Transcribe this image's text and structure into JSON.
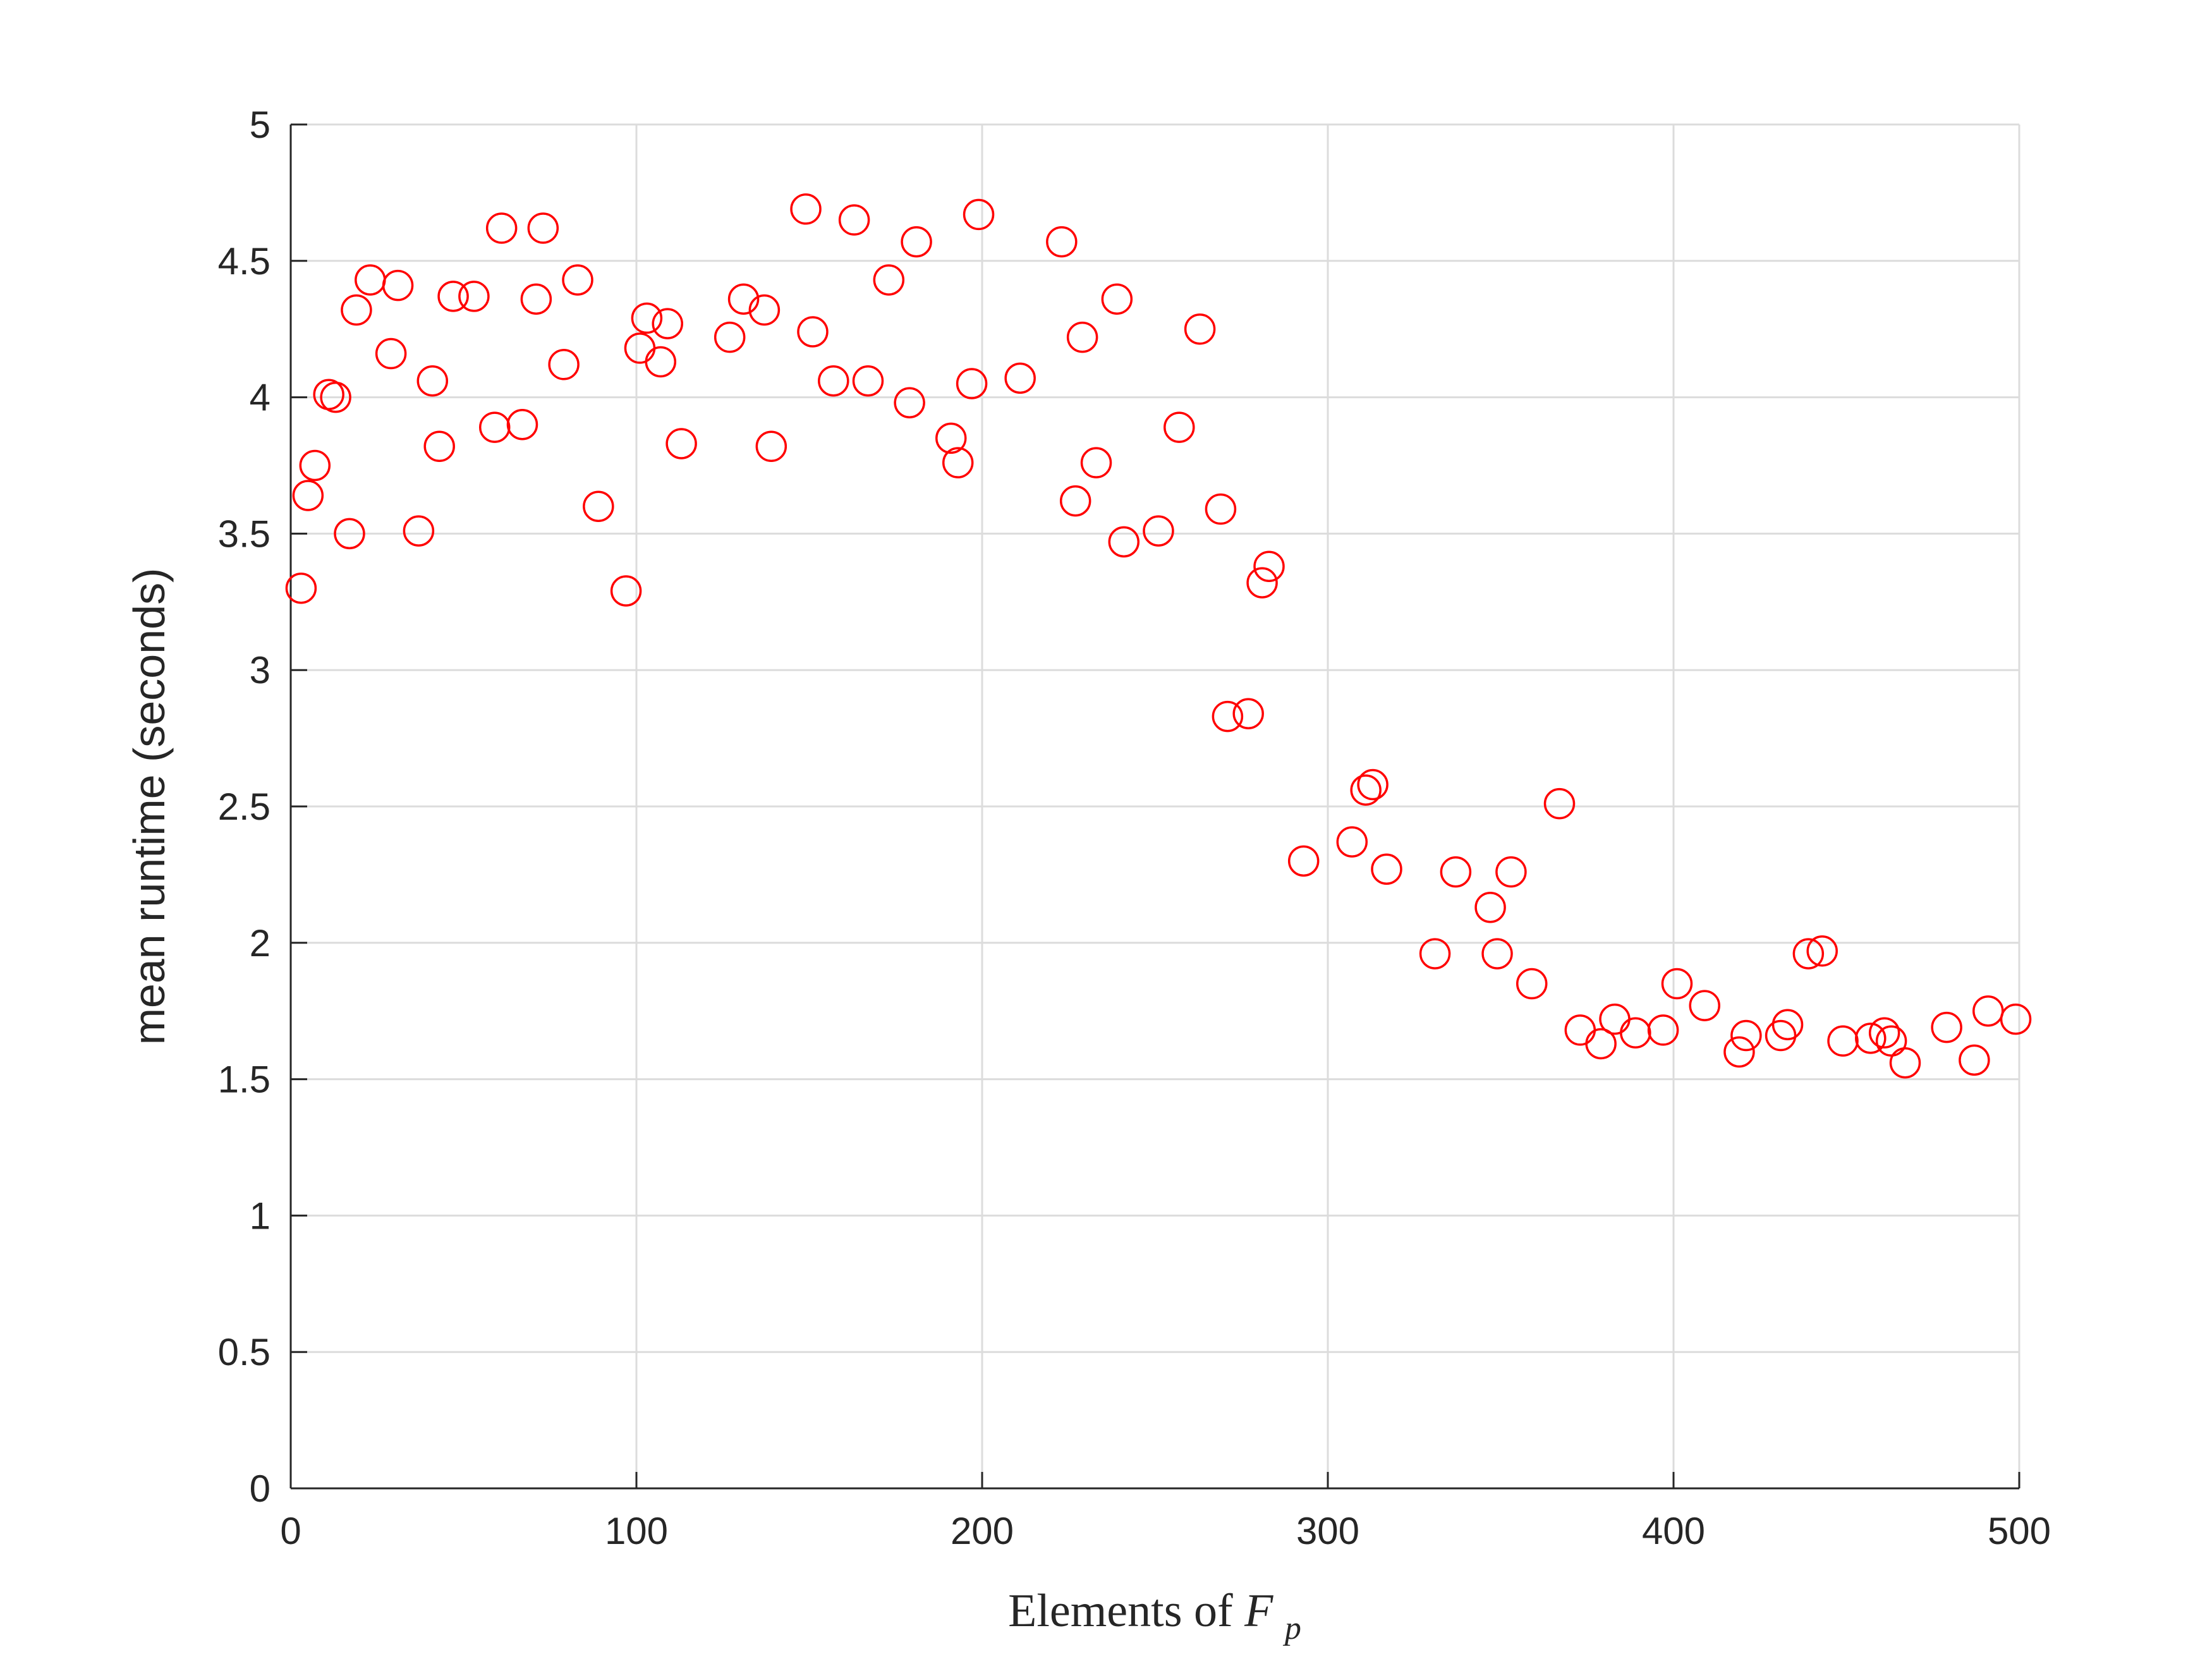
{
  "chart_data": {
    "type": "scatter",
    "xlabel": {
      "prefix": "Elements of ",
      "var": "F",
      "sub": "p"
    },
    "ylabel": "mean runtime (seconds)",
    "xlim": [
      0,
      500
    ],
    "ylim": [
      0,
      5
    ],
    "xticks": [
      0,
      100,
      200,
      300,
      400,
      500
    ],
    "xtick_labels": [
      "0",
      "100",
      "200",
      "300",
      "400",
      "500"
    ],
    "yticks": [
      0,
      0.5,
      1,
      1.5,
      2,
      2.5,
      3,
      3.5,
      4,
      4.5,
      5
    ],
    "ytick_labels": [
      "0",
      "0.5",
      "1",
      "1.5",
      "2",
      "2.5",
      "3",
      "3.5",
      "4",
      "4.5",
      "5"
    ],
    "grid": true,
    "marker": "open-circle",
    "marker_color": "#ff0000",
    "points": [
      [
        3,
        3.3
      ],
      [
        5,
        3.64
      ],
      [
        7,
        3.75
      ],
      [
        11,
        4.01
      ],
      [
        13,
        4.0
      ],
      [
        17,
        3.5
      ],
      [
        19,
        4.32
      ],
      [
        23,
        4.43
      ],
      [
        29,
        4.16
      ],
      [
        31,
        4.41
      ],
      [
        37,
        3.51
      ],
      [
        41,
        4.06
      ],
      [
        43,
        3.82
      ],
      [
        47,
        4.37
      ],
      [
        53,
        4.37
      ],
      [
        59,
        3.89
      ],
      [
        61,
        4.62
      ],
      [
        67,
        3.9
      ],
      [
        71,
        4.36
      ],
      [
        73,
        4.62
      ],
      [
        79,
        4.12
      ],
      [
        83,
        4.43
      ],
      [
        89,
        3.6
      ],
      [
        97,
        3.29
      ],
      [
        101,
        4.18
      ],
      [
        103,
        4.29
      ],
      [
        107,
        4.13
      ],
      [
        109,
        4.27
      ],
      [
        113,
        3.83
      ],
      [
        127,
        4.22
      ],
      [
        131,
        4.36
      ],
      [
        137,
        4.32
      ],
      [
        139,
        3.82
      ],
      [
        149,
        4.69
      ],
      [
        151,
        4.24
      ],
      [
        157,
        4.06
      ],
      [
        163,
        4.65
      ],
      [
        167,
        4.06
      ],
      [
        173,
        4.43
      ],
      [
        179,
        3.98
      ],
      [
        181,
        4.57
      ],
      [
        191,
        3.85
      ],
      [
        193,
        3.76
      ],
      [
        197,
        4.05
      ],
      [
        199,
        4.67
      ],
      [
        211,
        4.07
      ],
      [
        223,
        4.57
      ],
      [
        227,
        3.62
      ],
      [
        229,
        4.22
      ],
      [
        233,
        3.76
      ],
      [
        239,
        4.36
      ],
      [
        241,
        3.47
      ],
      [
        251,
        3.51
      ],
      [
        257,
        3.89
      ],
      [
        263,
        4.25
      ],
      [
        269,
        3.59
      ],
      [
        271,
        2.83
      ],
      [
        277,
        2.84
      ],
      [
        281,
        3.32
      ],
      [
        283,
        3.38
      ],
      [
        293,
        2.3
      ],
      [
        307,
        2.37
      ],
      [
        311,
        2.56
      ],
      [
        313,
        2.58
      ],
      [
        317,
        2.27
      ],
      [
        331,
        1.96
      ],
      [
        337,
        2.26
      ],
      [
        347,
        2.13
      ],
      [
        349,
        1.96
      ],
      [
        353,
        2.26
      ],
      [
        359,
        1.85
      ],
      [
        367,
        2.51
      ],
      [
        373,
        1.68
      ],
      [
        379,
        1.63
      ],
      [
        383,
        1.72
      ],
      [
        389,
        1.67
      ],
      [
        397,
        1.68
      ],
      [
        401,
        1.85
      ],
      [
        409,
        1.77
      ],
      [
        419,
        1.6
      ],
      [
        421,
        1.66
      ],
      [
        431,
        1.66
      ],
      [
        433,
        1.7
      ],
      [
        439,
        1.96
      ],
      [
        443,
        1.97
      ],
      [
        449,
        1.64
      ],
      [
        457,
        1.65
      ],
      [
        461,
        1.67
      ],
      [
        463,
        1.64
      ],
      [
        467,
        1.56
      ],
      [
        479,
        1.69
      ],
      [
        487,
        1.57
      ],
      [
        491,
        1.75
      ],
      [
        499,
        1.72
      ]
    ]
  }
}
